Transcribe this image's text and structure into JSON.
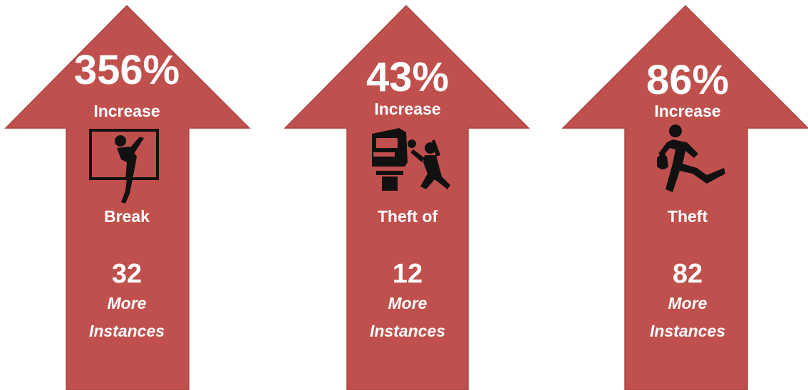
{
  "arrows": [
    {
      "percent": "356%",
      "change_label": "Increase",
      "category": "Break",
      "count": "32",
      "more_label": "More",
      "instances_label": "Instances",
      "icon": "window-break-in-icon"
    },
    {
      "percent": "43%",
      "change_label": "Increase",
      "category": "Theft of",
      "count": "12",
      "more_label": "More",
      "instances_label": "Instances",
      "icon": "car-theft-icon"
    },
    {
      "percent": "86%",
      "change_label": "Increase",
      "category": "Theft",
      "count": "82",
      "more_label": "More",
      "instances_label": "Instances",
      "icon": "running-thief-icon"
    }
  ],
  "colors": {
    "arrow_fill": "#c0504d",
    "text": "#ffffff",
    "icon": "#111111"
  }
}
